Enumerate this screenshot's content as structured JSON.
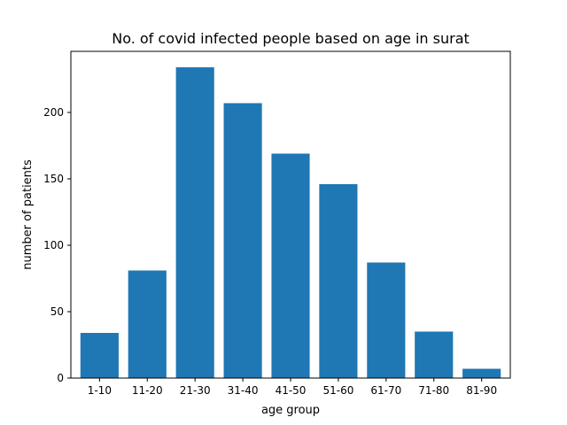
{
  "chart_data": {
    "type": "bar",
    "title": "No. of covid infected people based on age in surat",
    "xlabel": "age group",
    "ylabel": "number of patients",
    "categories": [
      "1-10",
      "11-20",
      "21-30",
      "31-40",
      "41-50",
      "51-60",
      "61-70",
      "71-80",
      "81-90"
    ],
    "values": [
      34,
      81,
      234,
      207,
      169,
      146,
      87,
      35,
      7
    ],
    "ylim": [
      0,
      246
    ],
    "yticks": [
      0,
      50,
      100,
      150,
      200
    ],
    "bar_color": "#1f77b4",
    "grid": false,
    "legend": "none"
  }
}
